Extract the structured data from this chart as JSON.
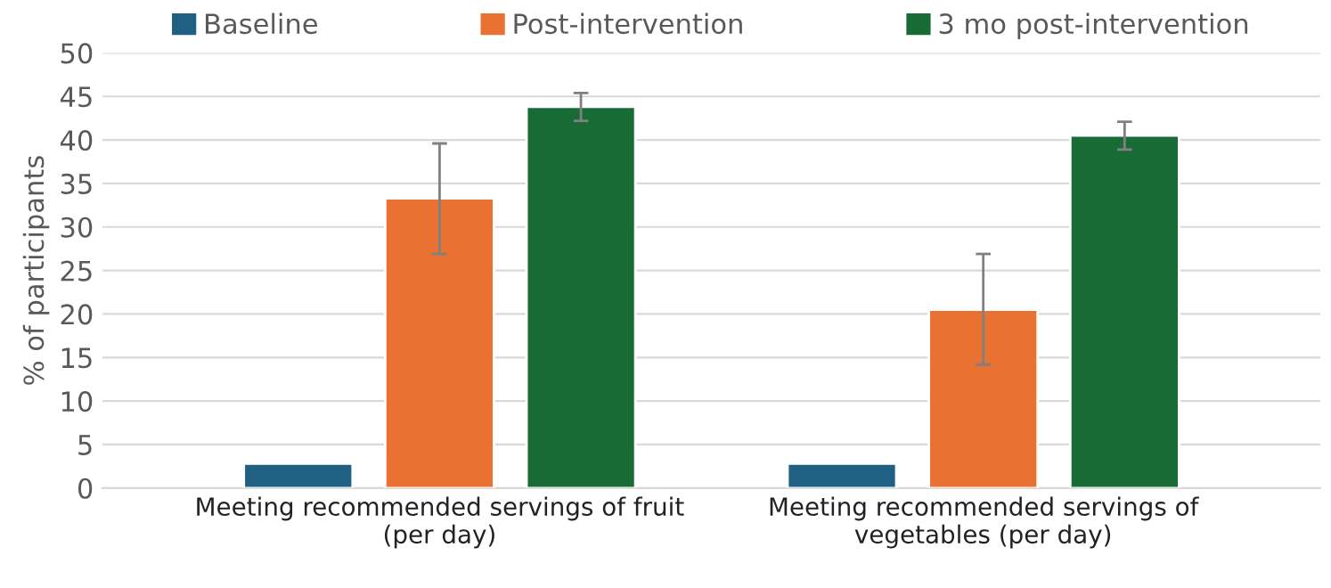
{
  "chart_data": {
    "type": "bar",
    "ylabel": "% of participants",
    "categories": [
      "Meeting recommended servings of fruit\n(per day)",
      "Meeting recommended servings of\nvegetables (per day)"
    ],
    "series": [
      {
        "name": "Baseline",
        "color": "#1f6083",
        "values": [
          2.8,
          2.8
        ],
        "errors": [
          null,
          null
        ]
      },
      {
        "name": "Post-intervention",
        "color": "#e97132",
        "values": [
          33.3,
          20.5
        ],
        "errors": [
          [
            26.9,
            39.6
          ],
          [
            14.2,
            26.9
          ]
        ]
      },
      {
        "name": "3 mo post-intervention",
        "color": "#196b35",
        "values": [
          43.8,
          40.5
        ],
        "errors": [
          [
            42.2,
            45.4
          ],
          [
            38.9,
            42.1
          ]
        ]
      }
    ],
    "ylim": [
      0,
      50
    ],
    "yticks": [
      0,
      5,
      10,
      15,
      20,
      25,
      30,
      35,
      40,
      45,
      50
    ],
    "grid": "y",
    "legend": "top"
  }
}
